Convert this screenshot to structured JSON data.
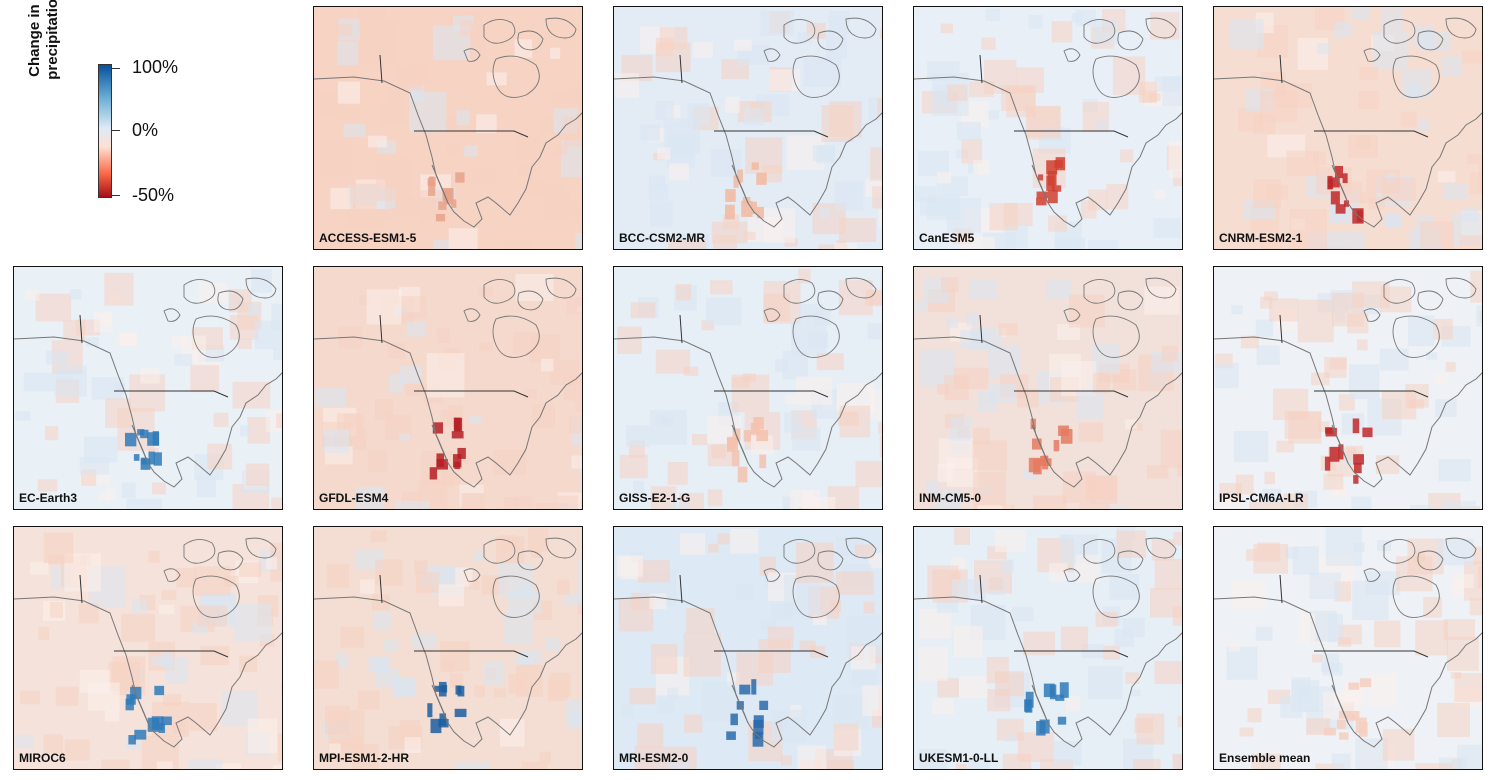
{
  "legend": {
    "title_line1": "Change in June",
    "title_line2": "precipitation (%)",
    "ticks": [
      "100%",
      "0%",
      "-50%"
    ]
  },
  "panels": [
    {
      "label": "ACCESS-ESM1-5",
      "tint": "#f7d3c4",
      "accent": "#e8a28a"
    },
    {
      "label": "BCC-CSM2-MR",
      "tint": "#e3ecf5",
      "accent": "#f2b8a0"
    },
    {
      "label": "CanESM5",
      "tint": "#e8eff6",
      "accent": "#d04030"
    },
    {
      "label": "CNRM-ESM2-1",
      "tint": "#f6ddd2",
      "accent": "#c0282a"
    },
    {
      "label": "EC-Earth3",
      "tint": "#e9f0f6",
      "accent": "#2f7ab8"
    },
    {
      "label": "GFDL-ESM4",
      "tint": "#f4d9cc",
      "accent": "#b51f24"
    },
    {
      "label": "GISS-E2-1-G",
      "tint": "#e6eef6",
      "accent": "#f3c1ad"
    },
    {
      "label": "INM-CM5-0",
      "tint": "#f2e1da",
      "accent": "#e57a60"
    },
    {
      "label": "IPSL-CM6A-LR",
      "tint": "#eef1f5",
      "accent": "#c0282a"
    },
    {
      "label": "MIROC6",
      "tint": "#f5e2da",
      "accent": "#2f7ab8"
    },
    {
      "label": "MPI-ESM1-2-HR",
      "tint": "#f4ddd2",
      "accent": "#1d5fa0"
    },
    {
      "label": "MRI-ESM2-0",
      "tint": "#dde9f4",
      "accent": "#2a6aac"
    },
    {
      "label": "UKESM1-0-LL",
      "tint": "#e6eef6",
      "accent": "#2f7ab8"
    },
    {
      "label": "Ensemble mean",
      "tint": "#eef1f5",
      "accent": "#f5cfc0"
    }
  ],
  "colors": {
    "positive": "#08519c",
    "neutral": "#f7f7f7",
    "negative": "#a50f15",
    "coastline": "#777777",
    "border": "#333333"
  }
}
